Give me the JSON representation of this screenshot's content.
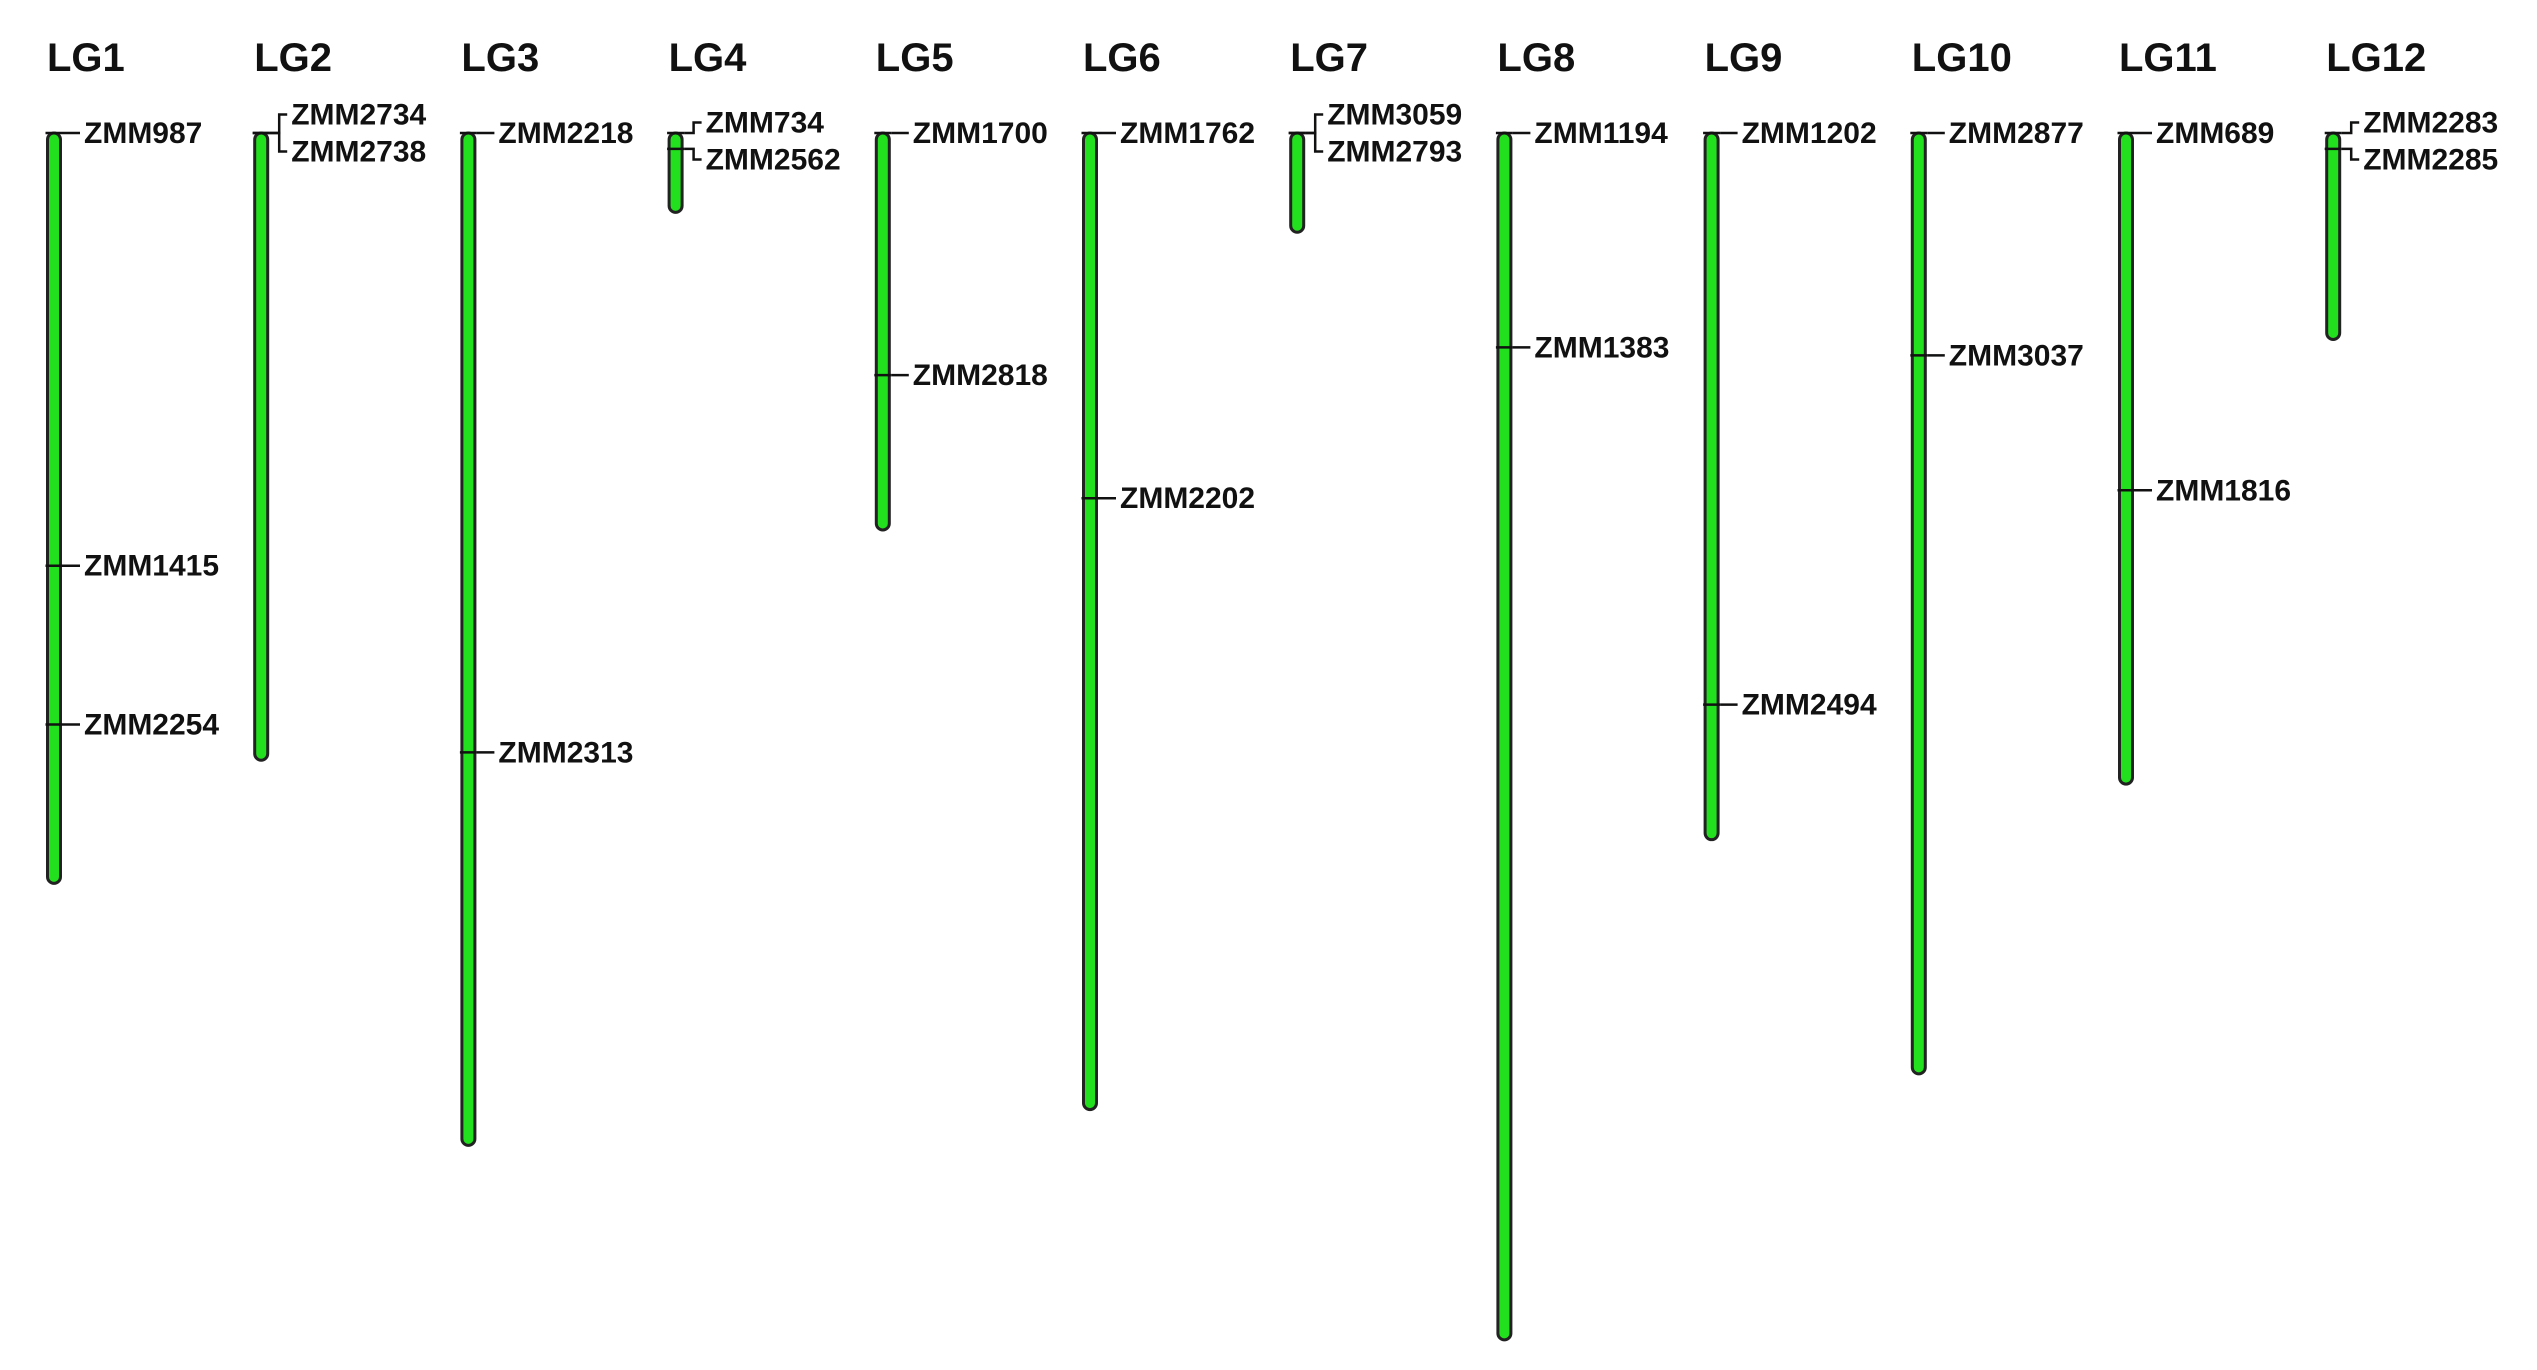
{
  "map": {
    "colors": {
      "chromosome_fill": "#22e01e",
      "chromosome_outline": "#222222",
      "text": "#111111",
      "background": "#ffffff"
    },
    "linkage_groups": [
      {
        "name": "LG1",
        "length_cM": 189,
        "markers": [
          {
            "name": "ZMM987",
            "position_cM": 0
          },
          {
            "name": "ZMM1415",
            "position_cM": 109
          },
          {
            "name": "ZMM2254",
            "position_cM": 149
          }
        ]
      },
      {
        "name": "LG2",
        "length_cM": 158,
        "markers": [
          {
            "name": "ZMM2734",
            "position_cM": 0
          },
          {
            "name": "ZMM2738",
            "position_cM": 0
          }
        ]
      },
      {
        "name": "LG3",
        "length_cM": 255,
        "markers": [
          {
            "name": "ZMM2218",
            "position_cM": 0
          },
          {
            "name": "ZMM2313",
            "position_cM": 156
          }
        ]
      },
      {
        "name": "LG4",
        "length_cM": 20,
        "markers": [
          {
            "name": "ZMM734",
            "position_cM": 0
          },
          {
            "name": "ZMM2562",
            "position_cM": 4
          }
        ]
      },
      {
        "name": "LG5",
        "length_cM": 100,
        "markers": [
          {
            "name": "ZMM1700",
            "position_cM": 0
          },
          {
            "name": "ZMM2818",
            "position_cM": 61
          }
        ]
      },
      {
        "name": "LG6",
        "length_cM": 246,
        "markers": [
          {
            "name": "ZMM1762",
            "position_cM": 0
          },
          {
            "name": "ZMM2202",
            "position_cM": 92
          }
        ]
      },
      {
        "name": "LG7",
        "length_cM": 25,
        "markers": [
          {
            "name": "ZMM3059",
            "position_cM": 0
          },
          {
            "name": "ZMM2793",
            "position_cM": 0
          }
        ]
      },
      {
        "name": "LG8",
        "length_cM": 304,
        "markers": [
          {
            "name": "ZMM1194",
            "position_cM": 0
          },
          {
            "name": "ZMM1383",
            "position_cM": 54
          }
        ]
      },
      {
        "name": "LG9",
        "length_cM": 178,
        "markers": [
          {
            "name": "ZMM1202",
            "position_cM": 0
          },
          {
            "name": "ZMM2494",
            "position_cM": 144
          }
        ]
      },
      {
        "name": "LG10",
        "length_cM": 237,
        "markers": [
          {
            "name": "ZMM2877",
            "position_cM": 0
          },
          {
            "name": "ZMM3037",
            "position_cM": 56
          }
        ]
      },
      {
        "name": "LG11",
        "length_cM": 164,
        "markers": [
          {
            "name": "ZMM689",
            "position_cM": 0
          },
          {
            "name": "ZMM1816",
            "position_cM": 90
          }
        ]
      },
      {
        "name": "LG12",
        "length_cM": 52,
        "markers": [
          {
            "name": "ZMM2283",
            "position_cM": 0
          },
          {
            "name": "ZMM2285",
            "position_cM": 4
          }
        ]
      }
    ]
  }
}
